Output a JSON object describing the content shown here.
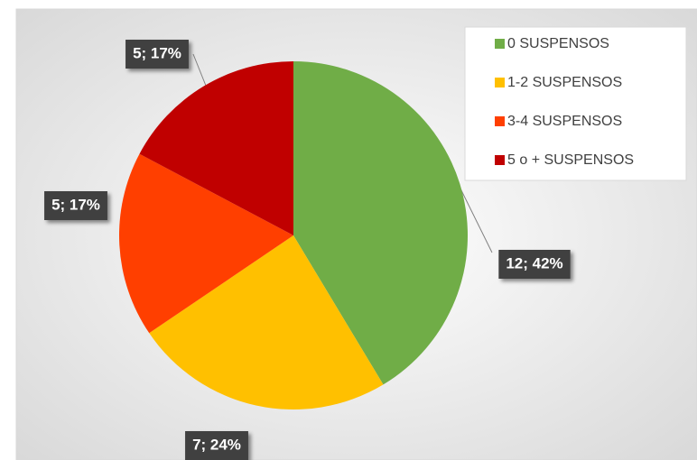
{
  "chart_data": {
    "type": "pie",
    "categories": [
      "0  SUSPENSOS",
      "1-2  SUSPENSOS",
      "3-4  SUSPENSOS",
      "5 o +  SUSPENSOS"
    ],
    "values": [
      12,
      7,
      5,
      5
    ],
    "value_labels": [
      "12; 42%",
      "7; 24%",
      "5; 17%",
      "5; 17%"
    ],
    "colors": [
      "#70ad47",
      "#ffc000",
      "#ff3f00",
      "#c00000"
    ],
    "legend": "top-right"
  }
}
